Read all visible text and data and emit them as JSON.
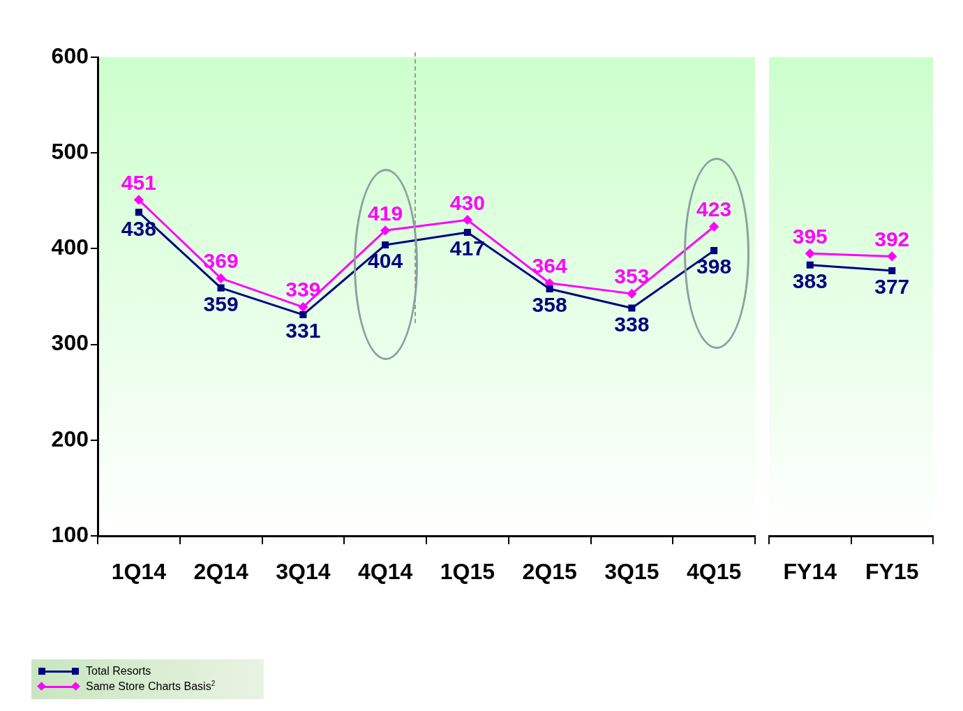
{
  "chart_data": [
    {
      "type": "line",
      "categories": [
        "1Q14",
        "2Q14",
        "3Q14",
        "4Q14",
        "1Q15",
        "2Q15",
        "3Q15",
        "4Q15"
      ],
      "series": [
        {
          "name": "Total Resorts",
          "color": "#000080",
          "marker": "square",
          "values": [
            438,
            359,
            331,
            404,
            417,
            358,
            338,
            398
          ]
        },
        {
          "name": "Same Store Charts Basis$^{2}$",
          "color": "#ff00ff",
          "marker": "diamond",
          "values": [
            451,
            369,
            339,
            419,
            430,
            364,
            353,
            423
          ]
        }
      ],
      "ylim": [
        100,
        600
      ],
      "yticks": [
        100,
        200,
        300,
        400,
        500,
        600
      ],
      "grid": false,
      "data_labels": true,
      "legend": "bottom left"
    },
    {
      "type": "line",
      "categories": [
        "FY14",
        "FY15"
      ],
      "series": [
        {
          "color": "#000080",
          "marker": "square",
          "values": [
            383,
            377
          ]
        },
        {
          "color": "#ff00ff",
          "marker": "diamond",
          "values": [
            395,
            392
          ]
        }
      ],
      "ylim": [
        100,
        600
      ],
      "yticks": [
        100,
        200,
        300,
        400,
        500,
        600
      ],
      "grid": false,
      "data_labels": true,
      "tick_labels": "x"
    }
  ]
}
